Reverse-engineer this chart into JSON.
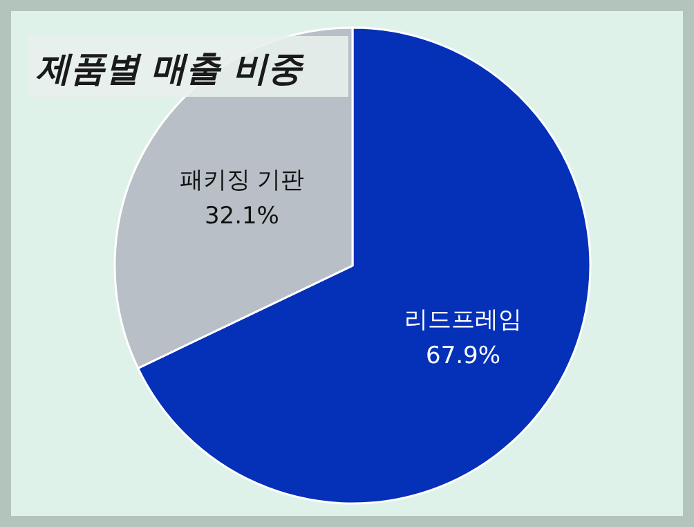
{
  "chart_data": {
    "type": "pie",
    "title": "제품별 매출 비중",
    "categories": [
      "리드프레임",
      "패키징 기판"
    ],
    "values": [
      67.9,
      32.1
    ],
    "colors": [
      "#0530b8",
      "#b8bfc6"
    ],
    "value_labels": [
      "67.9%",
      "32.1%"
    ]
  }
}
